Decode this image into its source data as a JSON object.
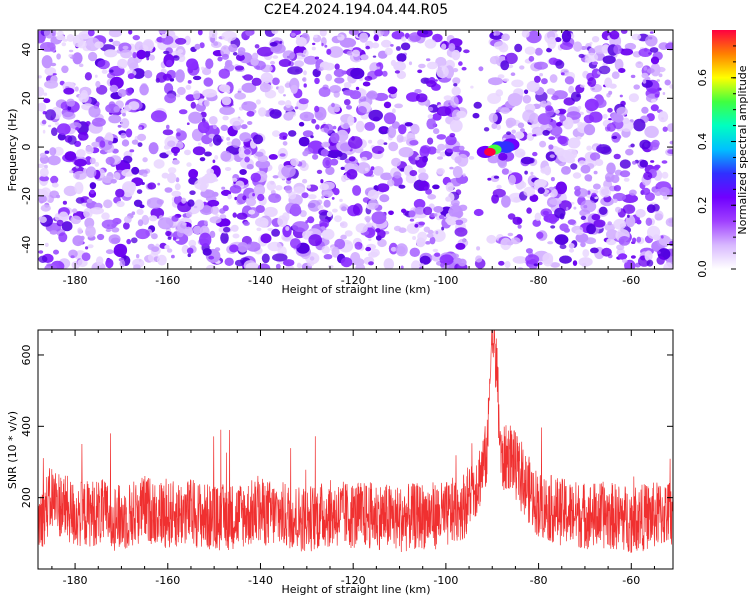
{
  "title": "C2E4.2024.194.04.44.R05",
  "colors": {
    "snr_line": "#f03030",
    "frame": "#000000"
  },
  "chart_data": [
    {
      "type": "heatmap",
      "xlabel": "Height of straight line (km)",
      "ylabel": "Frequency (Hz)",
      "xlim": [
        -188,
        -51
      ],
      "ylim": [
        -50,
        48
      ],
      "x_ticks": [
        -180,
        -160,
        -140,
        -120,
        -100,
        -80,
        -60
      ],
      "x_tick_labels": [
        "-180",
        "-160",
        "-140",
        "-120",
        "-100",
        "-80",
        "-60"
      ],
      "y_ticks": [
        -40,
        -20,
        0,
        20,
        40
      ],
      "y_tick_labels": [
        "-40",
        "-20",
        "0",
        "20",
        "40"
      ],
      "colormap": [
        "#ffffff",
        "#d8b8ff",
        "#a040ff",
        "#7000ff",
        "#3030ff",
        "#00c0ff",
        "#00ffc0",
        "#40ff40",
        "#ffff00",
        "#ff8000",
        "#ff0040"
      ],
      "background_noise": {
        "typical_amplitude": [
          0.02,
          0.15
        ],
        "x_range": [
          -188,
          -51
        ]
      },
      "quiet_band": {
        "x": [
          -96,
          -90
        ]
      },
      "feature": {
        "x": [
          -92,
          -86
        ],
        "y": [
          -5,
          2
        ],
        "points": [
          {
            "x": -90.5,
            "y": -2,
            "amplitude": 0.72
          },
          {
            "x": -89.5,
            "y": -1,
            "amplitude": 0.5
          },
          {
            "x": -88.5,
            "y": 0,
            "amplitude": 0.3
          },
          {
            "x": -87,
            "y": 0,
            "amplitude": 0.28
          },
          {
            "x": -91.5,
            "y": -2,
            "amplitude": 0.22
          },
          {
            "x": -86,
            "y": 1,
            "amplitude": 0.2
          }
        ]
      },
      "colorbar": {
        "label": "Normalized spectral amplitude",
        "range": [
          0,
          0.75
        ],
        "ticks": [
          0.0,
          0.2,
          0.4,
          0.6
        ],
        "tick_labels": [
          "0.0",
          "0.2",
          "0.4",
          "0.6"
        ]
      }
    },
    {
      "type": "line",
      "xlabel": "Height of straight line (km)",
      "ylabel": "SNR (10 * v/v)",
      "xlim": [
        -188,
        -51
      ],
      "ylim": [
        0,
        670
      ],
      "x_ticks": [
        -180,
        -160,
        -140,
        -120,
        -100,
        -80,
        -60
      ],
      "x_tick_labels": [
        "-180",
        "-160",
        "-140",
        "-120",
        "-100",
        "-80",
        "-60"
      ],
      "y_ticks": [
        200,
        400,
        600
      ],
      "y_tick_labels": [
        "200",
        "400",
        "600"
      ],
      "series": [
        {
          "color": "#f03030",
          "baseline_range": [
            40,
            280
          ],
          "max_spike": 400,
          "x": [
            -188,
            -185,
            -180,
            -175,
            -170,
            -165,
            -160,
            -155,
            -150,
            -145,
            -140,
            -135,
            -130,
            -125,
            -120,
            -115,
            -110,
            -105,
            -100,
            -96,
            -93,
            -91,
            -90.5,
            -90,
            -89.5,
            -89,
            -88.5,
            -88,
            -86,
            -84,
            -80,
            -75,
            -70,
            -65,
            -60,
            -55,
            -51
          ],
          "y": [
            130,
            200,
            150,
            160,
            140,
            170,
            150,
            160,
            140,
            150,
            160,
            150,
            140,
            155,
            150,
            150,
            140,
            150,
            150,
            180,
            250,
            330,
            560,
            660,
            600,
            560,
            400,
            300,
            320,
            260,
            180,
            160,
            150,
            150,
            140,
            150,
            160
          ]
        }
      ]
    }
  ]
}
